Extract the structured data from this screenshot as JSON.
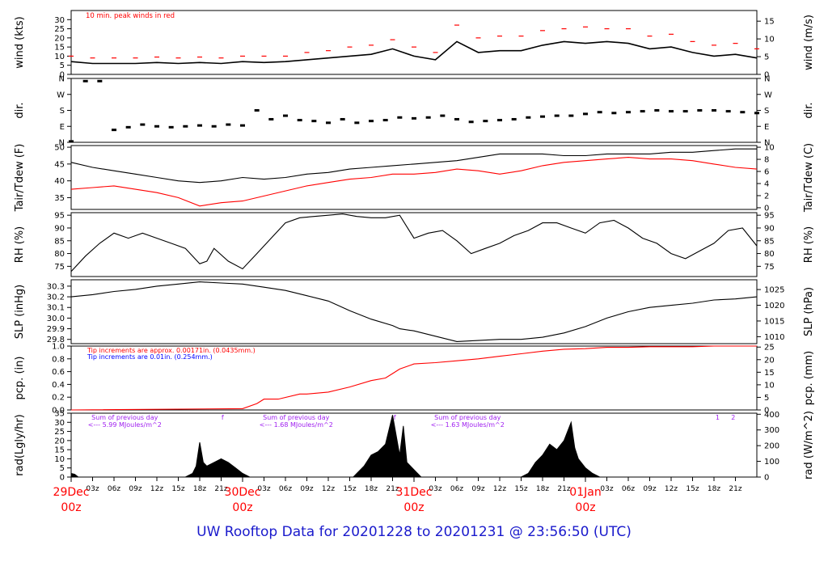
{
  "footer": {
    "title": "UW Rooftop Data for 20201228  to  20201231 @ 23:56:50  (UTC)"
  },
  "colors": {
    "series": "#000000",
    "peak": "#ff0000",
    "dewpoint": "#ff0000",
    "pcp": "#ff0000",
    "note_red": "#ff0000",
    "note_blue": "#0000ff",
    "annotation": "#a020f0",
    "date_label": "#ff0000",
    "footer": "#1a1acc"
  },
  "time_axis": {
    "range_hours": [
      0,
      96
    ],
    "hour_ticks": [
      {
        "t": 3,
        "label": "03z"
      },
      {
        "t": 6,
        "label": "06z"
      },
      {
        "t": 9,
        "label": "09z"
      },
      {
        "t": 12,
        "label": "12z"
      },
      {
        "t": 15,
        "label": "15z"
      },
      {
        "t": 18,
        "label": "18z"
      },
      {
        "t": 21,
        "label": "21z"
      },
      {
        "t": 27,
        "label": "03z"
      },
      {
        "t": 30,
        "label": "06z"
      },
      {
        "t": 33,
        "label": "09z"
      },
      {
        "t": 36,
        "label": "12z"
      },
      {
        "t": 39,
        "label": "15z"
      },
      {
        "t": 42,
        "label": "18z"
      },
      {
        "t": 45,
        "label": "21z"
      },
      {
        "t": 51,
        "label": "03z"
      },
      {
        "t": 54,
        "label": "06z"
      },
      {
        "t": 57,
        "label": "09z"
      },
      {
        "t": 60,
        "label": "12z"
      },
      {
        "t": 63,
        "label": "15z"
      },
      {
        "t": 66,
        "label": "18z"
      },
      {
        "t": 69,
        "label": "21z"
      },
      {
        "t": 75,
        "label": "03z"
      },
      {
        "t": 78,
        "label": "06z"
      },
      {
        "t": 81,
        "label": "09z"
      },
      {
        "t": 84,
        "label": "12z"
      },
      {
        "t": 87,
        "label": "15z"
      },
      {
        "t": 90,
        "label": "18z"
      },
      {
        "t": 93,
        "label": "21z"
      }
    ],
    "day_labels": [
      {
        "t": 0,
        "date": "29Dec",
        "hour": "00z"
      },
      {
        "t": 24,
        "date": "30Dec",
        "hour": "00z"
      },
      {
        "t": 48,
        "date": "31Dec",
        "hour": "00z"
      },
      {
        "t": 72,
        "date": "01Jan",
        "hour": "00z"
      }
    ]
  },
  "chart_data": [
    {
      "type": "line",
      "id": "wind",
      "left_label": "wind (kts)",
      "right_label": "wind (m/s)",
      "ylim": [
        0,
        35
      ],
      "left_ticks": [
        0,
        5,
        10,
        15,
        20,
        25,
        30
      ],
      "right_ticks": [
        0,
        5,
        10,
        15
      ],
      "right_scale": 0.5144,
      "note": "10 min. peak winds in red",
      "series": [
        {
          "name": "wind speed",
          "color": "#000000",
          "x": [
            0,
            3,
            6,
            9,
            12,
            15,
            18,
            21,
            24,
            27,
            30,
            33,
            36,
            39,
            42,
            45,
            48,
            51,
            54,
            57,
            60,
            63,
            66,
            69,
            72,
            75,
            78,
            81,
            84,
            87,
            90,
            93,
            96
          ],
          "y": [
            7,
            6,
            6,
            6,
            6.5,
            6,
            6.5,
            6,
            7,
            6.5,
            7,
            8,
            9,
            10,
            11,
            14,
            10,
            8,
            18,
            12,
            13,
            13,
            16,
            18,
            17,
            18,
            17,
            14,
            15,
            12,
            10,
            11,
            9
          ]
        },
        {
          "name": "peak",
          "color": "#ff0000",
          "x": [
            0,
            3,
            6,
            9,
            12,
            15,
            18,
            21,
            24,
            27,
            30,
            33,
            36,
            39,
            42,
            45,
            48,
            51,
            54,
            57,
            60,
            63,
            66,
            69,
            72,
            75,
            78,
            81,
            84,
            87,
            90,
            93,
            96
          ],
          "y": [
            10,
            9,
            9,
            9,
            9.5,
            9,
            9.5,
            9,
            10,
            10,
            10,
            12,
            13,
            15,
            16,
            19,
            15,
            12,
            27,
            20,
            21,
            21,
            24,
            25,
            26,
            25,
            25,
            21,
            22,
            18,
            16,
            17,
            14
          ]
        }
      ]
    },
    {
      "type": "scatter",
      "id": "dir",
      "left_label": "dir.",
      "right_label": "dir.",
      "ylim": [
        0,
        360
      ],
      "left_ticks": [
        "N",
        "E",
        "S",
        "W",
        "N"
      ],
      "right_ticks": [
        "N",
        "E",
        "S",
        "W",
        "N"
      ],
      "series": [
        {
          "name": "direction",
          "color": "#000000",
          "x": [
            0,
            2,
            4,
            6,
            8,
            10,
            12,
            14,
            16,
            18,
            20,
            22,
            24,
            26,
            28,
            30,
            32,
            34,
            36,
            38,
            40,
            42,
            44,
            46,
            48,
            50,
            52,
            54,
            56,
            58,
            60,
            62,
            64,
            66,
            68,
            70,
            72,
            74,
            76,
            78,
            80,
            82,
            84,
            86,
            88,
            90,
            92,
            94,
            96
          ],
          "y": [
            5,
            345,
            345,
            70,
            85,
            100,
            90,
            85,
            90,
            95,
            90,
            100,
            95,
            180,
            130,
            150,
            125,
            120,
            110,
            130,
            110,
            120,
            125,
            140,
            135,
            140,
            150,
            130,
            115,
            120,
            125,
            130,
            140,
            145,
            150,
            150,
            160,
            170,
            165,
            170,
            175,
            180,
            175,
            175,
            180,
            180,
            175,
            170,
            165
          ]
        }
      ]
    },
    {
      "type": "line",
      "id": "temp",
      "left_label": "Tair/Tdew (F)",
      "right_label": "Tair/Tdew (C)",
      "ylim": [
        31.5,
        50.5
      ],
      "left_ticks": [
        35,
        40,
        45,
        50
      ],
      "right_ticks": [
        0,
        2,
        4,
        6,
        8,
        10
      ],
      "series": [
        {
          "name": "Tair",
          "color": "#000000",
          "x": [
            0,
            3,
            6,
            9,
            12,
            15,
            18,
            21,
            24,
            27,
            30,
            33,
            36,
            39,
            42,
            45,
            48,
            51,
            54,
            57,
            60,
            63,
            66,
            69,
            72,
            75,
            78,
            81,
            84,
            87,
            90,
            93,
            96
          ],
          "y": [
            45.5,
            44,
            43,
            42,
            41,
            40,
            39.5,
            40,
            41,
            40.5,
            41,
            42,
            42.5,
            43.5,
            44,
            44.5,
            45,
            45.5,
            46,
            47,
            48,
            48,
            48,
            47.5,
            47.5,
            48,
            48,
            48,
            48.5,
            48.5,
            49,
            49.5,
            49.5
          ]
        },
        {
          "name": "Tdew",
          "color": "#ff0000",
          "x": [
            0,
            3,
            6,
            9,
            12,
            15,
            18,
            21,
            24,
            27,
            30,
            33,
            36,
            39,
            42,
            45,
            48,
            51,
            54,
            57,
            60,
            63,
            66,
            69,
            72,
            75,
            78,
            81,
            84,
            87,
            90,
            93,
            96
          ],
          "y": [
            37.5,
            38,
            38.5,
            37.5,
            36.5,
            35,
            32.5,
            33.5,
            34,
            35.5,
            37,
            38.5,
            39.5,
            40.5,
            41,
            42,
            42,
            42.5,
            43.5,
            43,
            42,
            43,
            44.5,
            45.5,
            46,
            46.5,
            47,
            46.5,
            46.5,
            46,
            45,
            44,
            43.5
          ]
        }
      ]
    },
    {
      "type": "line",
      "id": "rh",
      "left_label": "RH (%)",
      "right_label": "RH (%)",
      "ylim": [
        71,
        96
      ],
      "left_ticks": [
        75,
        80,
        85,
        90,
        95
      ],
      "right_ticks": [
        75,
        80,
        85,
        90,
        95
      ],
      "series": [
        {
          "name": "RH",
          "color": "#000000",
          "x": [
            0,
            2,
            4,
            6,
            8,
            10,
            12,
            14,
            16,
            18,
            19,
            20,
            22,
            24,
            26,
            28,
            30,
            32,
            34,
            36,
            38,
            40,
            42,
            44,
            46,
            48,
            50,
            52,
            54,
            56,
            58,
            60,
            62,
            64,
            66,
            68,
            70,
            72,
            74,
            76,
            78,
            80,
            82,
            84,
            86,
            88,
            90,
            92,
            94,
            96
          ],
          "y": [
            73,
            79,
            84,
            88,
            86,
            88,
            86,
            84,
            82,
            76,
            77,
            82,
            77,
            74,
            80,
            86,
            92,
            94,
            94.5,
            95,
            95.5,
            94.5,
            94,
            94,
            95,
            86,
            88,
            89,
            85,
            80,
            82,
            84,
            87,
            89,
            92,
            92,
            90,
            88,
            92,
            93,
            90,
            86,
            84,
            80,
            78,
            81,
            84,
            89,
            90,
            83
          ]
        }
      ]
    },
    {
      "type": "line",
      "id": "slp",
      "left_label": "SLP (inHg)",
      "right_label": "SLP (hPa)",
      "ylim": [
        29.76,
        30.36
      ],
      "left_ticks": [
        29.8,
        29.9,
        30.0,
        30.1,
        30.2,
        30.3
      ],
      "right_ticks": [
        1010,
        1015,
        1020,
        1025
      ],
      "series": [
        {
          "name": "SLP",
          "color": "#000000",
          "x": [
            0,
            3,
            6,
            9,
            12,
            15,
            18,
            21,
            24,
            27,
            30,
            33,
            36,
            39,
            42,
            45,
            46,
            48,
            51,
            54,
            57,
            60,
            63,
            66,
            69,
            72,
            75,
            78,
            81,
            84,
            87,
            90,
            93,
            96
          ],
          "y": [
            30.2,
            30.22,
            30.25,
            30.27,
            30.3,
            30.32,
            30.34,
            30.33,
            30.32,
            30.29,
            30.26,
            30.21,
            30.16,
            30.07,
            29.99,
            29.93,
            29.9,
            29.88,
            29.83,
            29.78,
            29.79,
            29.8,
            29.8,
            29.82,
            29.86,
            29.92,
            30.0,
            30.06,
            30.1,
            30.12,
            30.14,
            30.17,
            30.18,
            30.2
          ]
        }
      ]
    },
    {
      "type": "area",
      "id": "pcp",
      "left_label": "pcp. (in)",
      "right_label": "pcp. (mm)",
      "ylim": [
        0,
        1.0
      ],
      "left_ticks": [
        0.0,
        0.2,
        0.4,
        0.6,
        0.8,
        1.0
      ],
      "right_ticks": [
        0,
        5,
        10,
        15,
        20,
        25
      ],
      "notes": [
        {
          "text": "Tip increments are approx. 0.00171in. (0.0435mm.)",
          "color": "#ff0000"
        },
        {
          "text": "Tip increments are 0.01in. (0.254mm.)",
          "color": "#0000ff"
        }
      ],
      "series": [
        {
          "name": "accumulated precipitation",
          "color": "#ff0000",
          "x": [
            0,
            24,
            26,
            27,
            29,
            32,
            33,
            36,
            39,
            42,
            44,
            45,
            46,
            48,
            51,
            54,
            57,
            60,
            63,
            66,
            69,
            72,
            75,
            78,
            81,
            84,
            87,
            90,
            93,
            96
          ],
          "y": [
            0,
            0.02,
            0.1,
            0.17,
            0.17,
            0.25,
            0.25,
            0.28,
            0.36,
            0.46,
            0.5,
            0.57,
            0.64,
            0.72,
            0.74,
            0.77,
            0.8,
            0.84,
            0.88,
            0.92,
            0.95,
            0.96,
            0.98,
            0.98,
            0.99,
            0.99,
            0.99,
            1.0,
            1.0,
            1.0
          ]
        }
      ]
    },
    {
      "type": "area",
      "id": "rad",
      "left_label": "rad(Lgly/hr)",
      "right_label": "rad (W/m^2)",
      "ylim": [
        0,
        35
      ],
      "left_ticks": [
        0,
        5,
        10,
        15,
        20,
        25,
        30,
        35
      ],
      "right_ticks": [
        0,
        100,
        200,
        300,
        400
      ],
      "right_scale": 11.622,
      "annotations": [
        {
          "t": 7.5,
          "lines": [
            "Sum of previous day",
            "<--- 5.99 MJoules/m^2"
          ]
        },
        {
          "t": 31.5,
          "lines": [
            "Sum of previous day",
            "<--- 1.68 MJoules/m^2"
          ]
        },
        {
          "t": 55.5,
          "lines": [
            "Sum of previous day",
            "<--- 1.63 MJoules/m^2"
          ]
        }
      ],
      "markers": [
        {
          "t": 21.2,
          "label": "f"
        },
        {
          "t": 45.3,
          "label": "f"
        },
        {
          "t": 90.5,
          "label": "1"
        },
        {
          "t": 92.7,
          "label": "2"
        }
      ],
      "series": [
        {
          "name": "radiation",
          "color": "#000000",
          "x": [
            0,
            0.5,
            1,
            16,
            17,
            17.5,
            18,
            18.5,
            19,
            20,
            21,
            22,
            23,
            24,
            25,
            39.5,
            40,
            41,
            42,
            43,
            44,
            45,
            46,
            46.5,
            47,
            48,
            49,
            63,
            64,
            65,
            66,
            67,
            68,
            69,
            70,
            70.5,
            71,
            72,
            73,
            74,
            96
          ],
          "y": [
            2,
            1.5,
            0,
            0,
            2,
            6,
            19,
            8,
            6,
            8,
            10,
            8,
            5,
            2,
            0,
            0,
            2,
            6,
            12,
            14,
            18,
            34,
            12,
            28,
            8,
            4,
            0,
            0,
            2,
            8,
            12,
            18,
            15,
            20,
            30,
            16,
            10,
            5,
            2,
            0,
            0
          ]
        }
      ]
    }
  ]
}
